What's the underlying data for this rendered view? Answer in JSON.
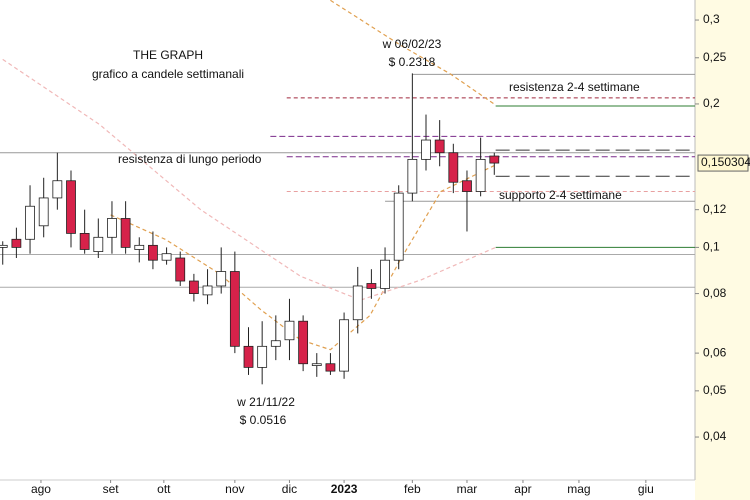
{
  "chart_data": {
    "type": "candlestick",
    "title": "THE GRAPH",
    "subtitle": "grafico a candele settimanali",
    "log_scale": true,
    "ylim": [
      0.0325,
      0.3305
    ],
    "yticks": [
      {
        "value": 0.3,
        "label": "0,3"
      },
      {
        "value": 0.25,
        "label": "0,25"
      },
      {
        "value": 0.2,
        "label": "0,2"
      },
      {
        "value": 0.12,
        "label": "0,12"
      },
      {
        "value": 0.1,
        "label": "0,1"
      },
      {
        "value": 0.08,
        "label": "0,08"
      },
      {
        "value": 0.06,
        "label": "0,06"
      },
      {
        "value": 0.05,
        "label": "0,05"
      },
      {
        "value": 0.04,
        "label": "0,04"
      }
    ],
    "last_price": {
      "value": 0.150304,
      "label": "0,150304"
    },
    "xlim": [
      -0.2,
      50.7
    ],
    "xticks": [
      {
        "value": 2.8,
        "label": "ago"
      },
      {
        "value": 7.9,
        "label": "set"
      },
      {
        "value": 11.8,
        "label": "ott"
      },
      {
        "value": 17,
        "label": "nov"
      },
      {
        "value": 21,
        "label": "dic"
      },
      {
        "value": 25,
        "label": "2023"
      },
      {
        "value": 30,
        "label": "feb"
      },
      {
        "value": 34,
        "label": "mar"
      },
      {
        "value": 38.1,
        "label": "apr"
      },
      {
        "value": 42.2,
        "label": "mag"
      },
      {
        "value": 47.1,
        "label": "giu"
      }
    ],
    "up_color": "#ffffff",
    "down_color": "#d6224a",
    "open": [
      0.1,
      0.104,
      0.104,
      0.111,
      0.127,
      0.138,
      0.107,
      0.098,
      0.105,
      0.115,
      0.099,
      0.101,
      0.094,
      0.095,
      0.085,
      0.0795,
      0.083,
      0.089,
      0.062,
      0.056,
      0.062,
      0.064,
      0.07,
      0.0565,
      0.057,
      0.055,
      0.0705,
      0.084,
      0.082,
      0.094,
      0.13,
      0.153,
      0.168,
      0.158,
      0.138,
      0.131,
      0.1555
    ],
    "high": [
      0.103,
      0.11,
      0.135,
      0.14,
      0.158,
      0.145,
      0.12,
      0.115,
      0.125,
      0.125,
      0.105,
      0.108,
      0.1,
      0.098,
      0.088,
      0.09,
      0.1,
      0.098,
      0.068,
      0.07,
      0.072,
      0.078,
      0.072,
      0.06,
      0.06,
      0.073,
      0.091,
      0.09,
      0.1,
      0.135,
      0.2318,
      0.19,
      0.185,
      0.165,
      0.145,
      0.17,
      0.158
    ],
    "low": [
      0.092,
      0.095,
      0.097,
      0.105,
      0.12,
      0.1,
      0.097,
      0.095,
      0.097,
      0.097,
      0.093,
      0.09,
      0.092,
      0.083,
      0.077,
      0.076,
      0.08,
      0.06,
      0.054,
      0.0516,
      0.058,
      0.058,
      0.055,
      0.0535,
      0.054,
      0.053,
      0.066,
      0.078,
      0.08,
      0.09,
      0.125,
      0.145,
      0.148,
      0.13,
      0.108,
      0.128,
      0.142
    ],
    "close": [
      0.101,
      0.1,
      0.122,
      0.127,
      0.138,
      0.107,
      0.099,
      0.105,
      0.115,
      0.1,
      0.101,
      0.094,
      0.097,
      0.085,
      0.08,
      0.083,
      0.089,
      0.062,
      0.056,
      0.062,
      0.0637,
      0.07,
      0.057,
      0.057,
      0.055,
      0.0705,
      0.083,
      0.082,
      0.094,
      0.13,
      0.153,
      0.168,
      0.158,
      0.137,
      0.131,
      0.153,
      0.150304
    ],
    "series": [
      {
        "color": "#e0a050",
        "x": [
          7.9,
          11.9,
          15.9,
          18.9,
          21.8,
          24,
          26.9,
          29.1,
          32.1,
          36.1
        ],
        "values": [
          0.117,
          0.104,
          0.088,
          0.074,
          0.064,
          0.061,
          0.072,
          0.094,
          0.131,
          0.149
        ]
      },
      {
        "color": "#e0a050",
        "x": [
          24,
          29.1,
          32.8,
          36.1
        ],
        "values": [
          0.33,
          0.266,
          0.231,
          0.199
        ]
      },
      {
        "color": "#f0b8b8",
        "x": [
          0,
          7.1,
          14.5,
          21.8,
          26.2,
          30.6,
          36.1
        ],
        "values": [
          0.248,
          0.181,
          0.12,
          0.087,
          0.0775,
          0.0854,
          0.1
        ]
      }
    ],
    "levels": [
      {
        "value": 0.2307,
        "color": "#999999",
        "dash": "none",
        "from": 30
      },
      {
        "value": 0.206,
        "color": "#a0283c",
        "dash": "4 3",
        "from": 20.8
      },
      {
        "value": 0.198,
        "color": "#2e7d32",
        "dash": "none",
        "from": 36.1
      },
      {
        "value": 0.171,
        "color": "#7a2a8a",
        "dash": "6 3",
        "from": 19.6
      },
      {
        "value": 0.16,
        "color": "#333333",
        "dash": "14 6",
        "from": 36.1
      },
      {
        "value": 0.158,
        "color": "#999999",
        "dash": "none",
        "from": -0.2
      },
      {
        "value": 0.155,
        "color": "#7a2a8a",
        "dash": "6 3",
        "from": 20.8
      },
      {
        "value": 0.141,
        "color": "#333333",
        "dash": "14 6",
        "from": 36.1
      },
      {
        "value": 0.131,
        "color": "#e8a0a0",
        "dash": "4 3",
        "from": 20.8
      },
      {
        "value": 0.125,
        "color": "#999999",
        "dash": "none",
        "from": 28
      },
      {
        "value": 0.1,
        "color": "#2e7d32",
        "dash": "none",
        "from": 36.1
      },
      {
        "value": 0.0966,
        "color": "#aaaaaa",
        "dash": "none",
        "from": -0.2
      },
      {
        "value": 0.0825,
        "color": "#aaaaaa",
        "dash": "none",
        "from": -0.2
      }
    ],
    "annotations": [
      "w 06/02/23",
      "$ 0.2318",
      "resistenza 2-4 settimane",
      "supporto 2-4 settimane",
      "resistenza di lungo periodo",
      "w 21/11/22",
      "$ 0.0516"
    ]
  }
}
